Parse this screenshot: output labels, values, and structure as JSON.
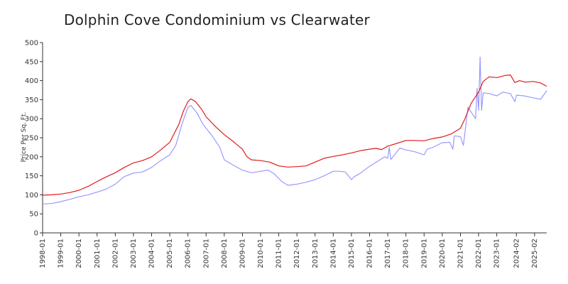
{
  "chart_data": {
    "type": "line",
    "title": "Dolphin Cove Condominium vs Clearwater",
    "xlabel": "",
    "ylabel": "Price Per Sq. Ft.",
    "ylim": [
      0,
      500
    ],
    "yticks": [
      0,
      50,
      100,
      150,
      200,
      250,
      300,
      350,
      400,
      450,
      500
    ],
    "x_range": [
      "1998-01",
      "2025-10"
    ],
    "xticks": [
      "1998-01",
      "1999-01",
      "2000-01",
      "2001-01",
      "2002-01",
      "2003-01",
      "2004-01",
      "2005-01",
      "2006-01",
      "2007-01",
      "2008-01",
      "2009-01",
      "2010-01",
      "2011-01",
      "2012-01",
      "2013-01",
      "2014-01",
      "2015-01",
      "2016-01",
      "2017-01",
      "2018-01",
      "2019-01",
      "2020-01",
      "2021-01",
      "2022-01",
      "2023-01",
      "2024-02",
      "2025-02"
    ],
    "grid": false,
    "legend": "none",
    "series": [
      {
        "color": "#e31a1c",
        "points": [
          [
            "1998-01",
            99
          ],
          [
            "1998-07",
            100
          ],
          [
            "1999-01",
            102
          ],
          [
            "1999-07",
            106
          ],
          [
            "2000-01",
            112
          ],
          [
            "2000-07",
            122
          ],
          [
            "2001-01",
            135
          ],
          [
            "2001-07",
            147
          ],
          [
            "2002-01",
            158
          ],
          [
            "2002-07",
            172
          ],
          [
            "2003-01",
            184
          ],
          [
            "2003-07",
            190
          ],
          [
            "2004-01",
            200
          ],
          [
            "2004-07",
            218
          ],
          [
            "2005-01",
            238
          ],
          [
            "2005-07",
            285
          ],
          [
            "2005-10",
            320
          ],
          [
            "2006-01",
            345
          ],
          [
            "2006-03",
            352
          ],
          [
            "2006-06",
            345
          ],
          [
            "2006-10",
            325
          ],
          [
            "2007-01",
            305
          ],
          [
            "2007-07",
            280
          ],
          [
            "2008-01",
            258
          ],
          [
            "2008-07",
            240
          ],
          [
            "2009-01",
            220
          ],
          [
            "2009-04",
            200
          ],
          [
            "2009-07",
            192
          ],
          [
            "2010-01",
            190
          ],
          [
            "2010-07",
            186
          ],
          [
            "2011-01",
            176
          ],
          [
            "2011-07",
            173
          ],
          [
            "2012-01",
            174
          ],
          [
            "2012-07",
            176
          ],
          [
            "2013-01",
            186
          ],
          [
            "2013-07",
            196
          ],
          [
            "2014-01",
            201
          ],
          [
            "2014-07",
            205
          ],
          [
            "2015-01",
            210
          ],
          [
            "2015-07",
            216
          ],
          [
            "2016-01",
            220
          ],
          [
            "2016-05",
            222
          ],
          [
            "2016-09",
            219
          ],
          [
            "2017-01",
            228
          ],
          [
            "2017-07",
            235
          ],
          [
            "2018-01",
            243
          ],
          [
            "2018-07",
            243
          ],
          [
            "2019-01",
            242
          ],
          [
            "2019-07",
            248
          ],
          [
            "2020-01",
            252
          ],
          [
            "2020-07",
            260
          ],
          [
            "2021-01",
            275
          ],
          [
            "2021-04",
            300
          ],
          [
            "2021-08",
            340
          ],
          [
            "2022-01",
            370
          ],
          [
            "2022-04",
            398
          ],
          [
            "2022-08",
            410
          ],
          [
            "2023-01",
            408
          ],
          [
            "2023-07",
            414
          ],
          [
            "2023-10",
            415
          ],
          [
            "2024-01",
            395
          ],
          [
            "2024-04",
            400
          ],
          [
            "2024-08",
            396
          ],
          [
            "2025-01",
            398
          ],
          [
            "2025-06",
            394
          ],
          [
            "2025-10",
            385
          ]
        ]
      },
      {
        "color": "#9999ff",
        "points": [
          [
            "1998-01",
            76
          ],
          [
            "1998-07",
            77
          ],
          [
            "1999-01",
            82
          ],
          [
            "1999-07",
            88
          ],
          [
            "2000-01",
            95
          ],
          [
            "2000-07",
            100
          ],
          [
            "2001-01",
            107
          ],
          [
            "2001-07",
            115
          ],
          [
            "2002-01",
            128
          ],
          [
            "2002-07",
            148
          ],
          [
            "2003-01",
            157
          ],
          [
            "2003-07",
            160
          ],
          [
            "2004-01",
            172
          ],
          [
            "2004-07",
            190
          ],
          [
            "2005-01",
            205
          ],
          [
            "2005-05",
            230
          ],
          [
            "2005-09",
            285
          ],
          [
            "2006-01",
            330
          ],
          [
            "2006-03",
            335
          ],
          [
            "2006-07",
            315
          ],
          [
            "2006-11",
            285
          ],
          [
            "2007-05",
            255
          ],
          [
            "2007-10",
            225
          ],
          [
            "2008-01",
            192
          ],
          [
            "2008-07",
            178
          ],
          [
            "2009-01",
            165
          ],
          [
            "2009-07",
            158
          ],
          [
            "2010-01",
            162
          ],
          [
            "2010-06",
            165
          ],
          [
            "2010-10",
            155
          ],
          [
            "2011-03",
            135
          ],
          [
            "2011-07",
            125
          ],
          [
            "2012-01",
            128
          ],
          [
            "2012-07",
            133
          ],
          [
            "2013-01",
            140
          ],
          [
            "2013-07",
            150
          ],
          [
            "2014-01",
            162
          ],
          [
            "2014-05",
            162
          ],
          [
            "2014-09",
            160
          ],
          [
            "2015-01",
            140
          ],
          [
            "2015-03",
            148
          ],
          [
            "2015-07",
            157
          ],
          [
            "2016-01",
            175
          ],
          [
            "2016-07",
            190
          ],
          [
            "2016-11",
            200
          ],
          [
            "2017-01",
            196
          ],
          [
            "2017-02",
            225
          ],
          [
            "2017-03",
            193
          ],
          [
            "2017-05",
            203
          ],
          [
            "2017-09",
            223
          ],
          [
            "2018-01",
            218
          ],
          [
            "2018-07",
            213
          ],
          [
            "2019-01",
            205
          ],
          [
            "2019-03",
            220
          ],
          [
            "2019-07",
            225
          ],
          [
            "2020-01",
            237
          ],
          [
            "2020-06",
            238
          ],
          [
            "2020-08",
            220
          ],
          [
            "2020-09",
            255
          ],
          [
            "2021-01",
            253
          ],
          [
            "2021-03",
            230
          ],
          [
            "2021-06",
            330
          ],
          [
            "2021-11",
            300
          ],
          [
            "2021-12",
            380
          ],
          [
            "2022-01",
            322
          ],
          [
            "2022-02",
            462
          ],
          [
            "2022-03",
            322
          ],
          [
            "2022-04",
            368
          ],
          [
            "2022-08",
            366
          ],
          [
            "2023-01",
            360
          ],
          [
            "2023-05",
            370
          ],
          [
            "2023-10",
            366
          ],
          [
            "2024-01",
            345
          ],
          [
            "2024-02",
            362
          ],
          [
            "2024-07",
            360
          ],
          [
            "2025-01",
            355
          ],
          [
            "2025-06",
            351
          ],
          [
            "2025-10",
            374
          ]
        ]
      }
    ]
  }
}
